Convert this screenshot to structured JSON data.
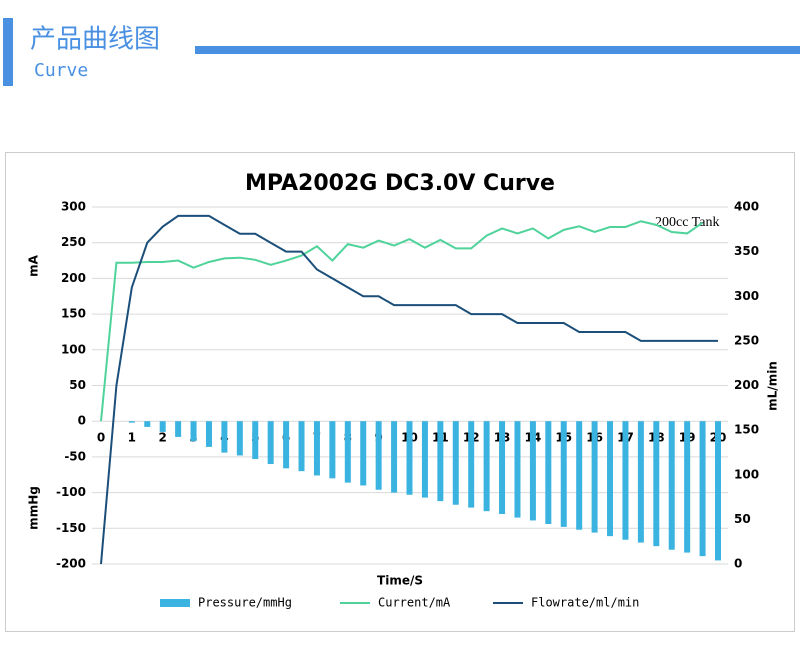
{
  "header": {
    "title": "产品曲线图",
    "subtitle": "Curve"
  },
  "chart_data": {
    "type": "bar-line",
    "title": "MPA2002G DC3.0V Curve",
    "x_label": "Time/S",
    "y_label_top": "mA",
    "y_label_bottom": "mmHg",
    "y2_label": "mL/min",
    "annotation": "200cc Tank",
    "x": [
      0,
      0.5,
      1,
      1.5,
      2,
      2.5,
      3,
      3.5,
      4,
      4.5,
      5,
      5.5,
      6,
      6.5,
      7,
      7.5,
      8,
      8.5,
      9,
      9.5,
      10,
      10.5,
      11,
      11.5,
      12,
      12.5,
      13,
      13.5,
      14,
      14.5,
      15,
      15.5,
      16,
      16.5,
      17,
      17.5,
      18,
      18.5,
      19,
      19.5,
      20
    ],
    "xlim": [
      0,
      20
    ],
    "xticks": [
      0,
      1,
      2,
      3,
      4,
      5,
      6,
      7,
      8,
      9,
      10,
      11,
      12,
      13,
      14,
      15,
      16,
      17,
      18,
      19,
      20
    ],
    "ylim": [
      -200,
      300
    ],
    "yticks": [
      300,
      250,
      200,
      150,
      100,
      50,
      0,
      -50,
      -100,
      -150,
      -200
    ],
    "y2lim": [
      0,
      400
    ],
    "y2ticks": [
      400,
      350,
      300,
      250,
      200,
      150,
      100,
      50,
      0
    ],
    "grid": true,
    "series": [
      {
        "name": "Pressure/mmHg",
        "type": "bar",
        "color": "#3bb3e0",
        "values": [
          null,
          null,
          -2,
          -8,
          -15,
          -22,
          -28,
          -36,
          -44,
          -48,
          -53,
          -60,
          -66,
          -70,
          -76,
          -80,
          -86,
          -90,
          -96,
          -100,
          -103,
          -107,
          -112,
          -117,
          -121,
          -126,
          -130,
          -135,
          -139,
          -144,
          -148,
          -152,
          -156,
          -161,
          -166,
          -170,
          -175,
          -180,
          -184,
          -189,
          -195
        ]
      },
      {
        "name": "Current/mA",
        "type": "line",
        "color": "#4fd39b",
        "values": [
          0,
          222,
          222,
          223,
          223,
          225,
          215,
          223,
          228,
          229,
          226,
          219,
          225,
          232,
          245,
          225,
          248,
          243,
          253,
          246,
          255,
          243,
          254,
          242,
          242,
          260,
          270,
          263,
          270,
          256,
          268,
          273,
          265,
          272,
          272,
          280,
          275,
          265,
          263,
          278,
          null
        ]
      },
      {
        "name": "Flowrate/ml/min",
        "type": "line",
        "axis": "y2",
        "color": "#1b4f7a",
        "values": [
          0,
          200,
          310,
          360,
          378,
          390,
          390,
          390,
          380,
          370,
          370,
          360,
          350,
          350,
          330,
          320,
          310,
          300,
          300,
          290,
          290,
          290,
          290,
          290,
          280,
          280,
          280,
          270,
          270,
          270,
          270,
          260,
          260,
          260,
          260,
          250,
          250,
          250,
          250,
          250,
          250
        ]
      }
    ]
  }
}
